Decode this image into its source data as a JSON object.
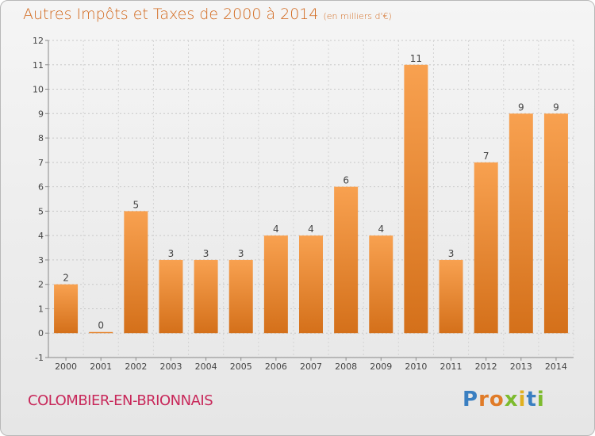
{
  "chart_data": {
    "type": "bar",
    "title": "Autres Impôts et Taxes de 2000 à 2014",
    "subtitle": "(en milliers d'€)",
    "categories": [
      "2000",
      "2001",
      "2002",
      "2003",
      "2004",
      "2005",
      "2006",
      "2007",
      "2008",
      "2009",
      "2010",
      "2011",
      "2012",
      "2013",
      "2014"
    ],
    "values": [
      2,
      0,
      5,
      3,
      3,
      3,
      4,
      4,
      6,
      4,
      11,
      3,
      7,
      9,
      9
    ],
    "ylim": [
      -1,
      12
    ],
    "yticks": [
      -1,
      0,
      1,
      2,
      3,
      4,
      5,
      6,
      7,
      8,
      9,
      10,
      11,
      12
    ],
    "grid": true,
    "bar_color": "#f0892f"
  },
  "footer": {
    "commune": "COLOMBIER-EN-BRIONNAIS",
    "logo_letters": [
      {
        "ch": "P",
        "color": "#3a7fc1"
      },
      {
        "ch": "r",
        "color": "#e07b28"
      },
      {
        "ch": "o",
        "color": "#e07b28"
      },
      {
        "ch": "x",
        "color": "#7dbb2e"
      },
      {
        "ch": "i",
        "color": "#e0b020"
      },
      {
        "ch": "t",
        "color": "#3a7fc1"
      },
      {
        "ch": "i",
        "color": "#7dbb2e"
      }
    ]
  }
}
